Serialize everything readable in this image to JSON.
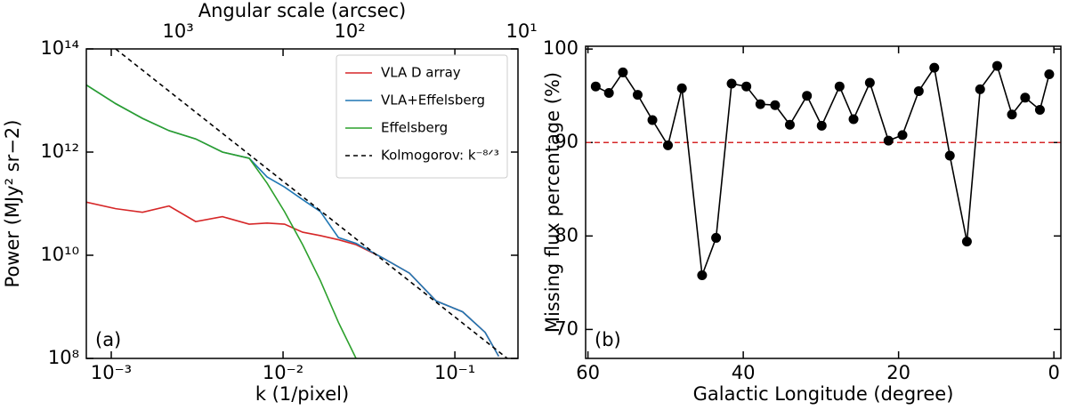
{
  "chart_data": [
    {
      "type": "line",
      "x2label": "Angular scale (arcsec)",
      "xlabel": "k (1/pixel)",
      "ylabel": "Power (MJy² sr−2)",
      "annotation": "(a)",
      "log_x": true,
      "log_y": true,
      "xlim": [
        0.000716,
        0.233
      ],
      "ylim": [
        100000000.0,
        100000000000000.0
      ],
      "x2lim": [
        3420,
        10.5
      ],
      "xticks": [
        {
          "value": 0.001,
          "label": "10⁻³"
        },
        {
          "value": 0.01,
          "label": "10⁻²"
        },
        {
          "value": 0.1,
          "label": "10⁻¹"
        }
      ],
      "yticks": [
        {
          "value": 100000000.0,
          "label": "10⁸"
        },
        {
          "value": 10000000000.0,
          "label": "10¹⁰"
        },
        {
          "value": 1000000000000.0,
          "label": "10¹²"
        },
        {
          "value": 100000000000000.0,
          "label": "10¹⁴"
        }
      ],
      "x2ticks": [
        {
          "value": 1000,
          "label": "10³"
        },
        {
          "value": 100,
          "label": "10²"
        },
        {
          "value": 10,
          "label": "10¹"
        }
      ],
      "legend": "upper right",
      "x": [
        0.000716,
        0.00106,
        0.00152,
        0.00217,
        0.0031,
        0.00444,
        0.00635,
        0.00807,
        0.0102,
        0.013,
        0.0165,
        0.021,
        0.0266,
        0.038,
        0.0544,
        0.0778,
        0.111,
        0.15,
        0.18
      ],
      "series": [
        {
          "name": "VLA D array",
          "color": "#d62728",
          "values": [
            107000000000.0,
            80000000000.0,
            68000000000.0,
            90000000000.0,
            45000000000.0,
            56000000000.0,
            40000000000.0,
            42000000000.0,
            40000000000.0,
            28000000000.0,
            24000000000.0,
            20000000000.0,
            16000000000.0,
            8900000000.0,
            4500000000.0,
            1300000000.0,
            800000000.0,
            320000000.0,
            110000000.0
          ]
        },
        {
          "name": "VLA+Effelsberg",
          "color": "#1f77b4",
          "values": [
            20000000000000.0,
            8700000000000.0,
            4500000000000.0,
            2600000000000.0,
            1800000000000.0,
            1000000000000.0,
            760000000000.0,
            330000000000.0,
            210000000000.0,
            120000000000.0,
            70000000000.0,
            22000000000.0,
            17000000000.0,
            8900000000.0,
            4500000000.0,
            1300000000.0,
            800000000.0,
            320000000.0,
            110000000.0
          ]
        },
        {
          "name": "Effelsberg",
          "color": "#2ca02c",
          "values": [
            20000000000000.0,
            8700000000000.0,
            4500000000000.0,
            2600000000000.0,
            1800000000000.0,
            1000000000000.0,
            760000000000.0,
            250000000000.0,
            70000000000.0,
            16000000000.0,
            3200000000.0,
            500000000.0,
            100000000.0,
            null,
            null,
            null,
            null,
            null,
            null
          ]
        },
        {
          "name": "Kolmogorov: k⁻⁸ᐟ³",
          "color": "#000000",
          "dash": true,
          "x": [
            0.00106,
            0.202
          ],
          "values": [
            100000000000000.0,
            100000000.0
          ]
        }
      ]
    },
    {
      "type": "line",
      "xlabel": "Galactic Longitude (degree)",
      "ylabel": "Missing flux percentage (%)",
      "annotation": "(b)",
      "markers": true,
      "xlim": [
        60.3,
        -0.9
      ],
      "ylim": [
        66.9,
        100.3
      ],
      "xticks": [
        60,
        40,
        20,
        0
      ],
      "yticks": [
        70,
        80,
        90,
        100
      ],
      "hline": {
        "value": 90,
        "color": "#d62728"
      },
      "x": [
        59,
        57.3,
        55.5,
        53.6,
        51.7,
        49.7,
        47.9,
        45.3,
        43.5,
        41.5,
        39.6,
        37.8,
        35.9,
        34.0,
        31.8,
        29.9,
        27.6,
        25.8,
        23.7,
        21.3,
        19.5,
        17.4,
        15.4,
        13.4,
        11.2,
        9.5,
        7.3,
        5.4,
        3.7,
        1.8,
        0.6
      ],
      "series": [
        {
          "color": "#000000",
          "values": [
            96.0,
            95.3,
            97.5,
            95.1,
            92.4,
            89.7,
            95.8,
            75.8,
            79.8,
            96.3,
            96.0,
            94.1,
            94.0,
            91.9,
            95.0,
            91.8,
            96.0,
            92.5,
            96.4,
            90.2,
            90.8,
            95.5,
            98.0,
            88.6,
            79.4,
            95.7,
            98.2,
            93.0,
            94.8,
            93.5,
            97.3
          ]
        }
      ]
    }
  ]
}
